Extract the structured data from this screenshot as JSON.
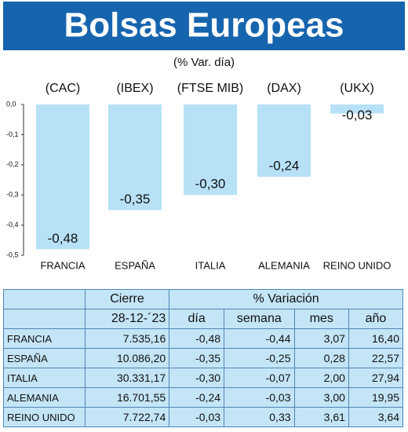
{
  "chart_data": {
    "type": "bar",
    "title": "Bolsas Europeas",
    "subtitle": "(% Var. día)",
    "index_codes": [
      "(CAC)",
      "(IBEX)",
      "(FTSE MIB)",
      "(DAX)",
      "(UKX)"
    ],
    "categories": [
      "FRANCIA",
      "ESPAÑA",
      "ITALIA",
      "ALEMANIA",
      "REINO UNIDO"
    ],
    "values": [
      -0.48,
      -0.35,
      -0.3,
      -0.24,
      -0.03
    ],
    "value_labels": [
      "-0,48",
      "-0,35",
      "-0,30",
      "-0,24",
      "-0,03"
    ],
    "color": "#b7e1f7",
    "ylim": [
      -0.5,
      0
    ],
    "yticks": [
      {
        "value": 0,
        "label": "0,0"
      },
      {
        "value": -0.1,
        "label": "-0,1"
      },
      {
        "value": -0.2,
        "label": "-0,2"
      },
      {
        "value": -0.3,
        "label": "-0,3"
      },
      {
        "value": -0.4,
        "label": "-0,4"
      },
      {
        "value": -0.5,
        "label": "-0,5"
      }
    ]
  },
  "table": {
    "groups": [
      "Cierre",
      "% Variación"
    ],
    "columns": [
      "28-12-´23",
      "día",
      "semana",
      "mes",
      "año"
    ],
    "rows": [
      [
        "FRANCIA",
        "7.535,16",
        "-0,48",
        "-0,44",
        "3,07",
        "16,40"
      ],
      [
        "ESPAÑA",
        "10.086,20",
        "-0,35",
        "-0,25",
        "0,28",
        "22,57"
      ],
      [
        "ITALIA",
        "30.331,17",
        "-0,30",
        "-0,07",
        "2,00",
        "27,94"
      ],
      [
        "ALEMANIA",
        "16.701,55",
        "-0,24",
        "-0,03",
        "3,00",
        "19,95"
      ],
      [
        "REINO UNIDO",
        "7.722,74",
        "-0,03",
        "0,33",
        "3,61",
        "3,64"
      ]
    ]
  }
}
